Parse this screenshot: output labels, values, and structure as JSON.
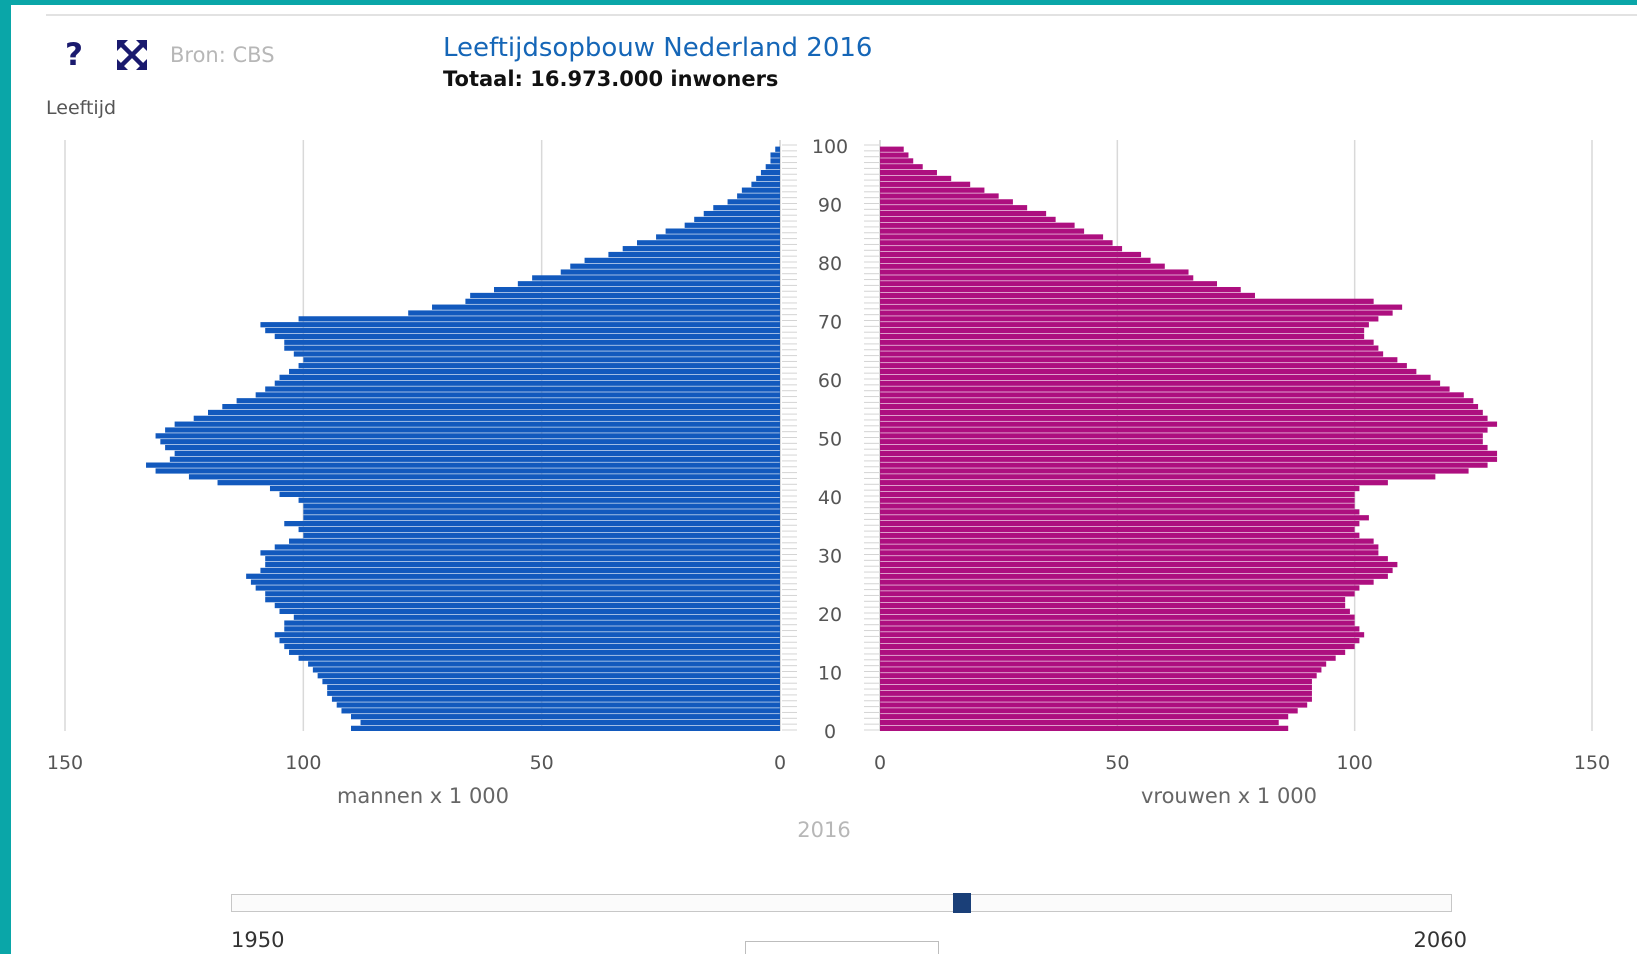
{
  "header": {
    "help_label": "?",
    "source": "Bron: CBS",
    "title": "Leeftijdsopbouw Nederland 2016",
    "subtitle": "Totaal: 16.973.000 inwoners"
  },
  "icons": {
    "help": "question-icon",
    "fullscreen": "expand-icon"
  },
  "slider": {
    "current_year": "2016",
    "min_label": "1950",
    "max_label": "2060",
    "min": 1950,
    "max": 2060,
    "value": 2016
  },
  "colors": {
    "men": "#1259bd",
    "women": "#ad0f7f",
    "axis_text": "#555555"
  },
  "chart_data": {
    "type": "bar",
    "orientation": "horizontal",
    "layout": "population-pyramid",
    "y_axis_label": "Leeftijd",
    "age_ticks": [
      "0",
      "10",
      "20",
      "30",
      "40",
      "50",
      "60",
      "70",
      "80",
      "90",
      "100"
    ],
    "x_ticks_left": [
      "150",
      "100",
      "50",
      "0"
    ],
    "x_ticks_right": [
      "0",
      "50",
      "100",
      "150"
    ],
    "xlim": [
      0,
      150
    ],
    "grid": true,
    "ages": [
      0,
      1,
      2,
      3,
      4,
      5,
      6,
      7,
      8,
      9,
      10,
      11,
      12,
      13,
      14,
      15,
      16,
      17,
      18,
      19,
      20,
      21,
      22,
      23,
      24,
      25,
      26,
      27,
      28,
      29,
      30,
      31,
      32,
      33,
      34,
      35,
      36,
      37,
      38,
      39,
      40,
      41,
      42,
      43,
      44,
      45,
      46,
      47,
      48,
      49,
      50,
      51,
      52,
      53,
      54,
      55,
      56,
      57,
      58,
      59,
      60,
      61,
      62,
      63,
      64,
      65,
      66,
      67,
      68,
      69,
      70,
      71,
      72,
      73,
      74,
      75,
      76,
      77,
      78,
      79,
      80,
      81,
      82,
      83,
      84,
      85,
      86,
      87,
      88,
      89,
      90,
      91,
      92,
      93,
      94,
      95,
      96,
      97,
      98,
      99
    ],
    "series": [
      {
        "name": "mannen x 1 000",
        "side": "left",
        "values": [
          90,
          88,
          90,
          92,
          93,
          94,
          95,
          95,
          96,
          97,
          98,
          99,
          101,
          103,
          104,
          105,
          106,
          104,
          104,
          102,
          105,
          106,
          108,
          108,
          110,
          111,
          112,
          109,
          108,
          108,
          109,
          106,
          103,
          100,
          101,
          104,
          100,
          100,
          100,
          101,
          105,
          107,
          118,
          124,
          131,
          133,
          128,
          127,
          129,
          130,
          131,
          129,
          127,
          123,
          120,
          117,
          114,
          110,
          108,
          106,
          105,
          103,
          101,
          100,
          102,
          104,
          104,
          106,
          108,
          109,
          101,
          78,
          73,
          66,
          65,
          60,
          55,
          52,
          46,
          44,
          41,
          36,
          33,
          30,
          26,
          24,
          20,
          18,
          16,
          14,
          11,
          9,
          8,
          6,
          5,
          4,
          3,
          2,
          2,
          1
        ]
      },
      {
        "name": "vrouwen x 1 000",
        "side": "right",
        "values": [
          86,
          84,
          86,
          88,
          90,
          91,
          91,
          91,
          91,
          92,
          93,
          94,
          96,
          98,
          100,
          101,
          102,
          101,
          100,
          100,
          99,
          98,
          98,
          100,
          101,
          104,
          107,
          108,
          109,
          107,
          105,
          105,
          104,
          101,
          100,
          101,
          103,
          101,
          100,
          100,
          100,
          101,
          107,
          117,
          124,
          128,
          130,
          130,
          128,
          127,
          127,
          128,
          130,
          128,
          127,
          126,
          125,
          123,
          120,
          118,
          116,
          113,
          111,
          109,
          106,
          105,
          104,
          102,
          102,
          103,
          105,
          108,
          110,
          104,
          79,
          76,
          71,
          66,
          65,
          60,
          57,
          55,
          51,
          49,
          47,
          43,
          41,
          37,
          35,
          31,
          28,
          25,
          22,
          19,
          15,
          12,
          9,
          7,
          6,
          5
        ]
      }
    ]
  }
}
